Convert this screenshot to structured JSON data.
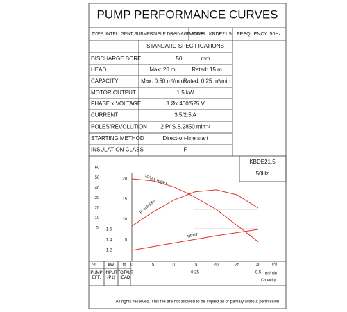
{
  "title": "PUMP PERFORMANCE CURVES",
  "header": {
    "type": "TYPE: INTELLGENT SUBMERSIBLE  DRAINAGE  PUMP",
    "model": "MODEL: KBDE21.5",
    "frequency": "FREQUENCY: 50Hz"
  },
  "specs": {
    "title": "STANDARD SPECIFICATIONS",
    "rows": [
      [
        "DISCHARGE BORE",
        "50",
        "mm"
      ],
      [
        "HEAD",
        "Max: 20 m",
        "Rated: 15 m"
      ],
      [
        "CAPACITY",
        "Max: 0.50 m³/min",
        "Rated: 0.25 m³/min"
      ],
      [
        "MOTOR OUTPUT",
        "1.5  kW"
      ],
      [
        "PHASE x VOLTAGE",
        "3 Øx 400/525 V"
      ],
      [
        "CURRENT",
        "3.5/2.5 A"
      ],
      [
        "POLES/REVOLUTION",
        "2 P/ S.S.2850 min⁻¹"
      ],
      [
        "STARTING METHOD",
        "Direct-on-line start"
      ],
      [
        "INSULATION CLASS",
        "F"
      ]
    ]
  },
  "model_box": [
    "KBDE21.5",
    "50Hz"
  ],
  "chart_data": {
    "type": "line",
    "x": [
      0,
      5,
      10,
      15,
      20,
      25,
      30
    ],
    "xlim": [
      0,
      30
    ],
    "xticks": [
      0,
      5,
      10,
      15,
      20,
      25,
      30
    ],
    "x_unit": "m³/h",
    "x2lim": [
      0,
      0.5
    ],
    "x2ticks": [
      0,
      0.25,
      0.5
    ],
    "x2_unit": "m³/min",
    "x_title": "Capacity",
    "ylim": [
      0,
      20
    ],
    "yticks": [
      5,
      10,
      15,
      20
    ],
    "y_unit": "m",
    "y_label": "TOTAL HEAD",
    "y2lim": [
      0,
      60
    ],
    "y2ticks": [
      0,
      10,
      20,
      30,
      40,
      50,
      60
    ],
    "y2_unit": "%",
    "y2_label": "PUMP EFF.",
    "y3lim": [
      1.2,
      1.6
    ],
    "y3ticks": [
      1.2,
      1.4,
      1.6
    ],
    "y3_unit": "kW",
    "y3_label": "INPUT (P1)",
    "series": [
      {
        "name": "TOTAL HEAD",
        "color": "#e0302a",
        "axis": "y",
        "values": [
          20,
          19.5,
          18,
          15.5,
          12.5,
          8.5,
          4.5
        ]
      },
      {
        "name": "PUMP EFF",
        "color": "#e0302a",
        "axis": "y2",
        "values": [
          2,
          16,
          28,
          36,
          38,
          33,
          20
        ]
      },
      {
        "name": "INPUT",
        "color": "#e0302a",
        "axis": "y3",
        "values": [
          1.2,
          1.27,
          1.34,
          1.41,
          1.48,
          1.54,
          1.6
        ]
      }
    ]
  },
  "footer": "All rights reserved. This file are not allowed to be copied all or partialy without permission."
}
